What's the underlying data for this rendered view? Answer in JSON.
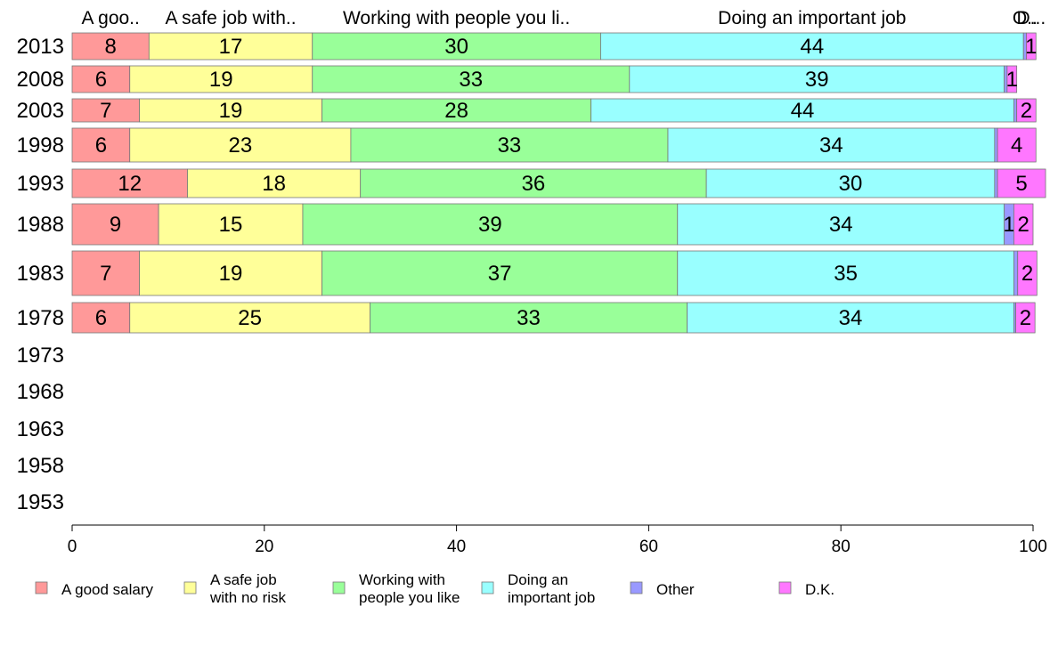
{
  "chart_data": {
    "type": "bar",
    "orientation": "horizontal",
    "stacked": true,
    "xlim": [
      0,
      100
    ],
    "x_ticks": [
      "0",
      "20",
      "40",
      "60",
      "80",
      "100"
    ],
    "categories": [
      "2013",
      "2008",
      "2003",
      "1998",
      "1993",
      "1988",
      "1983",
      "1978",
      "1973",
      "1968",
      "1963",
      "1958",
      "1953"
    ],
    "column_headers": [
      "A goo..",
      "A safe job with..",
      "Working with people you li..",
      "Doing an important job",
      "O..",
      "D..."
    ],
    "series": [
      {
        "name": "A good salary",
        "legend_lines": [
          "A good salary"
        ],
        "color": "#ff9999",
        "values": [
          8,
          6,
          7,
          6,
          12,
          9,
          7,
          6,
          null,
          null,
          null,
          null,
          null
        ]
      },
      {
        "name": "A safe job with no risk",
        "legend_lines": [
          "A safe job",
          "with no risk"
        ],
        "color": "#ffff99",
        "values": [
          17,
          19,
          19,
          23,
          18,
          15,
          19,
          25,
          null,
          null,
          null,
          null,
          null
        ]
      },
      {
        "name": "Working with people you like",
        "legend_lines": [
          "Working with",
          "people you like"
        ],
        "color": "#99ff99",
        "values": [
          30,
          33,
          28,
          33,
          36,
          39,
          37,
          33,
          null,
          null,
          null,
          null,
          null
        ]
      },
      {
        "name": "Doing an important job",
        "legend_lines": [
          "Doing an",
          "important job"
        ],
        "color": "#99ffff",
        "values": [
          44,
          39,
          44,
          34,
          30,
          34,
          35,
          34,
          null,
          null,
          null,
          null,
          null
        ]
      },
      {
        "name": "Other",
        "legend_lines": [
          "Other"
        ],
        "color": "#9999ff",
        "values": [
          0.3,
          0.3,
          0.3,
          0.3,
          0.3,
          1,
          0.4,
          0.2,
          null,
          null,
          null,
          null,
          null
        ]
      },
      {
        "name": "D.K.",
        "legend_lines": [
          "D.K."
        ],
        "color": "#ff77ff",
        "values": [
          1,
          1,
          2,
          4,
          5,
          2,
          2,
          2,
          null,
          null,
          null,
          null,
          null
        ]
      }
    ],
    "data_labels": [
      [
        "8",
        "17",
        "30",
        "44",
        "",
        "1"
      ],
      [
        "6",
        "19",
        "33",
        "39",
        "",
        "1"
      ],
      [
        "7",
        "19",
        "28",
        "44",
        "",
        "2"
      ],
      [
        "6",
        "23",
        "33",
        "34",
        "",
        "4"
      ],
      [
        "12",
        "18",
        "36",
        "30",
        "",
        "5"
      ],
      [
        "9",
        "15",
        "39",
        "34",
        "1",
        "2"
      ],
      [
        "7",
        "19",
        "37",
        "35",
        "",
        "2"
      ],
      [
        "6",
        "25",
        "33",
        "34",
        "",
        "2"
      ]
    ],
    "legend_position": "bottom",
    "grid": false
  }
}
